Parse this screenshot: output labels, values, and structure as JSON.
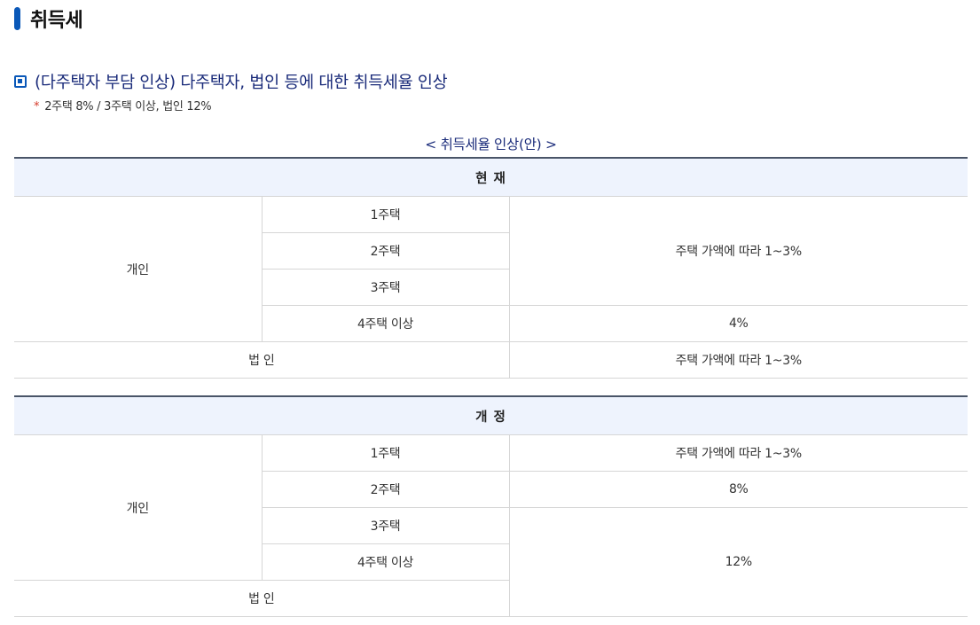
{
  "page_title": "취득세",
  "section": {
    "heading": "(다주택자 부담 인상) 다주택자, 법인 등에 대한 취득세율 인상",
    "note_star": "*",
    "note": "2주택 8% / 3주택 이상, 법인 12%"
  },
  "caption": "< 취득세율 인상(안) >",
  "current": {
    "header": "현 재",
    "individual": "개인",
    "rows": [
      "1주택",
      "2주택",
      "3주택",
      "4주택 이상"
    ],
    "rate_1to3": "주택 가액에 따라 1~3%",
    "rate_4plus": "4%",
    "corporate": "법 인",
    "corporate_rate": "주택 가액에 따라 1~3%"
  },
  "revised": {
    "header": "개 정",
    "individual": "개인",
    "rows": [
      "1주택",
      "2주택",
      "3주택",
      "4주택 이상"
    ],
    "rate_1": "주택 가액에 따라 1~3%",
    "rate_2": "8%",
    "rate_3plus": "12%",
    "corporate": "법 인"
  }
}
